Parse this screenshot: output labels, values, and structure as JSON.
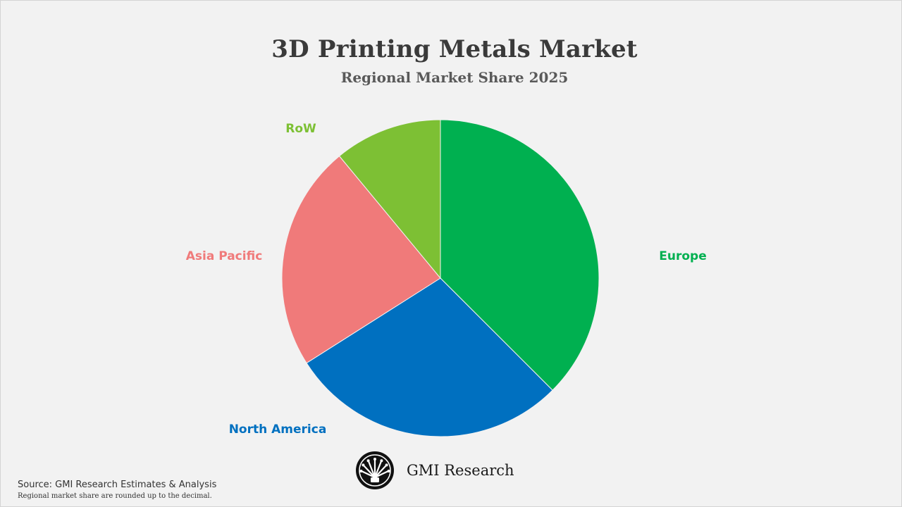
{
  "brand": {
    "name": "GMI Research",
    "logo_icon": "gmi-fan-logo-icon"
  },
  "footer": {
    "source": "Source: GMI Research Estimates & Analysis",
    "note": "Regional market share are rounded up to the decimal."
  },
  "chart_data": {
    "type": "pie",
    "title": "3D Printing Metals Market",
    "subtitle": "Regional Market Share 2025",
    "start_angle_deg": 0,
    "direction": "clockwise",
    "slices": [
      {
        "label": "Europe",
        "value": 37.5,
        "color": "#00b050"
      },
      {
        "label": "North America",
        "value": 28.5,
        "color": "#0070c0"
      },
      {
        "label": "Asia Pacific",
        "value": 23.0,
        "color": "#f07a7a"
      },
      {
        "label": "RoW",
        "value": 11.0,
        "color": "#7dc034"
      }
    ]
  }
}
